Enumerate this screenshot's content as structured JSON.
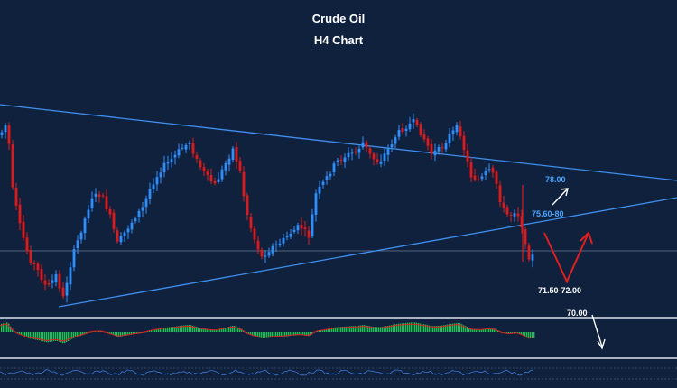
{
  "chart_data": {
    "type": "candlestick",
    "title": "Crude Oil",
    "subtitle": "H4 Chart",
    "annotations": [
      {
        "key": "t78",
        "text": "78.00",
        "color": "#4aa3ff"
      },
      {
        "key": "t7560",
        "text": "75.60-80",
        "color": "#4aa3ff"
      },
      {
        "key": "t7150",
        "text": "71.50-72.00",
        "color": "#ffffff"
      },
      {
        "key": "t70",
        "text": "70.00",
        "color": "#ffffff"
      }
    ],
    "colors": {
      "background": "#0f213d",
      "bull": "#2f8fff",
      "bear": "#e01a1a",
      "trendline": "#3e8fef",
      "hist": "#1fbf55",
      "signal": "#e01a1a",
      "arrow_red": "#e02020",
      "arrow_white": "#ffffff"
    }
  }
}
